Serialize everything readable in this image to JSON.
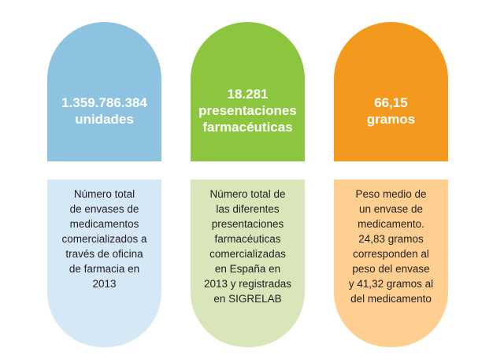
{
  "colors": {
    "blue": "#8dc3e0",
    "blue_light": "#d5e8f5",
    "green": "#8cc63f",
    "green_light": "#d9e6b9",
    "orange": "#f39a1e",
    "orange_light": "#fecf91",
    "text_dark": "#231f20"
  },
  "cards": [
    {
      "stat_lines": [
        "1.359.786.384",
        "unidades"
      ],
      "desc_lines": [
        "Número total",
        "de envases de",
        "medicamentos",
        "comercializados a",
        "través de oficina",
        "de farmacia en",
        "2013"
      ]
    },
    {
      "stat_lines": [
        "18.281",
        "presentaciones",
        "farmacéuticas"
      ],
      "desc_lines": [
        "Número total de",
        "las diferentes",
        "presentaciones",
        "farmacéuticas",
        "comercializadas",
        "en España en",
        "2013 y registradas",
        "en SIGRELAB"
      ]
    },
    {
      "stat_lines": [
        "66,15",
        "gramos"
      ],
      "desc_lines": [
        "Peso medio de",
        "un envase de",
        "medicamento.",
        "24,83 gramos",
        "corresponden al",
        "peso del envase",
        "y 41,32 gramos al",
        "del medicamento"
      ]
    }
  ]
}
